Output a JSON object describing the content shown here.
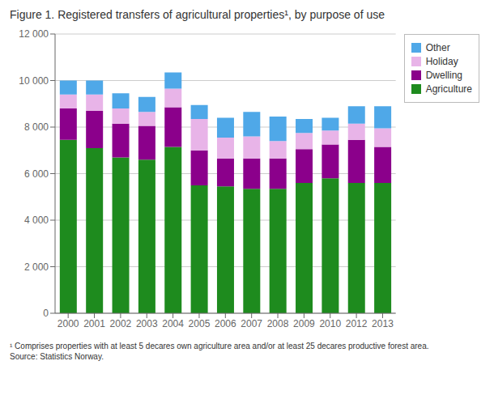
{
  "chart_data": {
    "type": "bar",
    "title": "Figure 1. Registered transfers of agricultural properties¹, by purpose of use",
    "footnote": "¹ Comprises properties with at least 5 decares own agriculture area and/or at least 25 decares productive forest area.\nSource: Statistics Norway.",
    "categories": [
      "2000",
      "2001",
      "2002",
      "2003",
      "2004",
      "2005",
      "2006",
      "2007",
      "2008",
      "2009",
      "2010",
      "2012",
      "2013"
    ],
    "series": [
      {
        "name": "Agriculture",
        "color": "#1e8b1e",
        "values": [
          7450,
          7100,
          6700,
          6600,
          7150,
          5500,
          5450,
          5350,
          5350,
          5600,
          5800,
          5600,
          5600
        ]
      },
      {
        "name": "Dwelling",
        "color": "#8b008b",
        "values": [
          1350,
          1600,
          1450,
          1450,
          1700,
          1500,
          1200,
          1300,
          1300,
          1450,
          1450,
          1850,
          1550
        ]
      },
      {
        "name": "Holiday",
        "color": "#e8b4e8",
        "values": [
          600,
          700,
          650,
          600,
          800,
          1350,
          900,
          950,
          750,
          700,
          600,
          700,
          800
        ]
      },
      {
        "name": "Other",
        "color": "#4fa8e8",
        "values": [
          600,
          600,
          650,
          650,
          700,
          600,
          850,
          1050,
          1050,
          600,
          550,
          750,
          950
        ]
      }
    ],
    "stacked": true,
    "ylim": [
      0,
      12000
    ],
    "yticks": [
      0,
      {
        "value": 2000,
        "label": "2 000"
      },
      {
        "value": 4000,
        "label": "4 000"
      },
      {
        "value": 6000,
        "label": "6 000"
      },
      {
        "value": 8000,
        "label": "8 000"
      },
      {
        "value": 10000,
        "label": "10 000"
      },
      {
        "value": 12000,
        "label": "12 000"
      }
    ],
    "grid": true,
    "legend": "upper right"
  }
}
